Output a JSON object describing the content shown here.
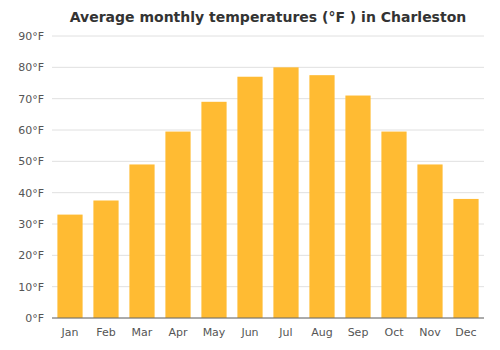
{
  "chart_data": {
    "type": "bar",
    "title": "Average monthly temperatures (°F ) in Charleston",
    "categories": [
      "Jan",
      "Feb",
      "Mar",
      "Apr",
      "May",
      "Jun",
      "Jul",
      "Aug",
      "Sep",
      "Oct",
      "Nov",
      "Dec"
    ],
    "values": [
      33,
      37.5,
      49,
      59.5,
      69,
      77,
      80,
      77.5,
      71,
      59.5,
      49,
      38
    ],
    "color": "#FFBB33",
    "ylim": [
      0,
      90
    ],
    "yticks": [
      {
        "value": 0,
        "label": "0°F"
      },
      {
        "value": 10,
        "label": "10°F"
      },
      {
        "value": 20,
        "label": "20°F"
      },
      {
        "value": 30,
        "label": "30°F"
      },
      {
        "value": 40,
        "label": "40°F"
      },
      {
        "value": 50,
        "label": "50°F"
      },
      {
        "value": 60,
        "label": "60°F"
      },
      {
        "value": 70,
        "label": "70°F"
      },
      {
        "value": 80,
        "label": "80°F"
      },
      {
        "value": 90,
        "label": "90°F"
      }
    ],
    "grid": true
  }
}
